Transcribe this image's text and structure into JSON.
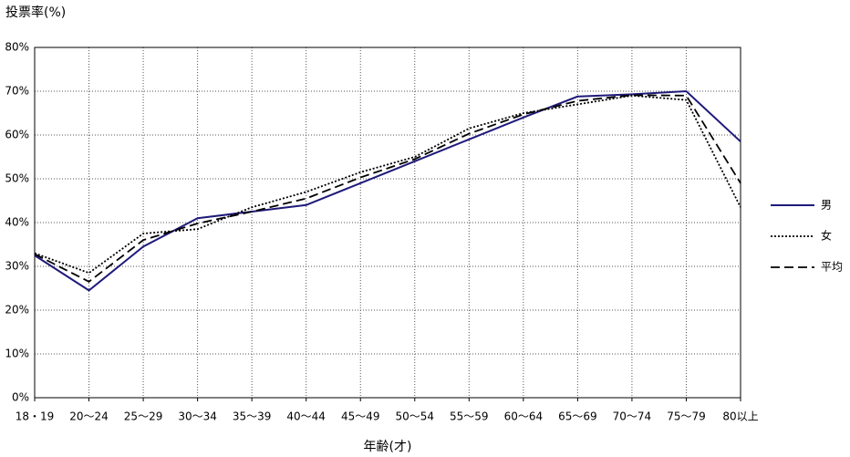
{
  "chart_data": {
    "type": "line",
    "y_axis_label": "投票率(%)",
    "x_axis_label": "年齢(才)",
    "categories": [
      "18・19",
      "20～24",
      "25～29",
      "30～34",
      "35～39",
      "40～44",
      "45～49",
      "50～54",
      "55～59",
      "60～64",
      "65～69",
      "70～74",
      "75～79",
      "80以上"
    ],
    "ylim": [
      0,
      80
    ],
    "yticks": [
      {
        "value": 0,
        "label": "0%"
      },
      {
        "value": 10,
        "label": "10%"
      },
      {
        "value": 20,
        "label": "20%"
      },
      {
        "value": 30,
        "label": "30%"
      },
      {
        "value": 40,
        "label": "40%"
      },
      {
        "value": 50,
        "label": "50%"
      },
      {
        "value": 60,
        "label": "60%"
      },
      {
        "value": 70,
        "label": "70%"
      },
      {
        "value": 80,
        "label": "80%"
      }
    ],
    "grid": true,
    "legend": "right",
    "series": [
      {
        "name": "男",
        "color": "#1f1a7a",
        "dash": "solid",
        "values": [
          32.5,
          24.5,
          34.5,
          41,
          42.5,
          44,
          49,
          54,
          59,
          64,
          68.8,
          69.3,
          70,
          58.5
        ]
      },
      {
        "name": "女",
        "color": "#000000",
        "dash": "dotted",
        "values": [
          33,
          28.5,
          37.5,
          38.5,
          43.5,
          47,
          51.5,
          55,
          61.5,
          65,
          67,
          69,
          68,
          43.5
        ]
      },
      {
        "name": "平均",
        "color": "#000000",
        "dash": "dashed",
        "values": [
          32.8,
          26.5,
          36,
          39.8,
          42.5,
          45.5,
          50.3,
          54.5,
          60.3,
          64.7,
          67.8,
          69.1,
          69,
          49
        ]
      }
    ]
  }
}
